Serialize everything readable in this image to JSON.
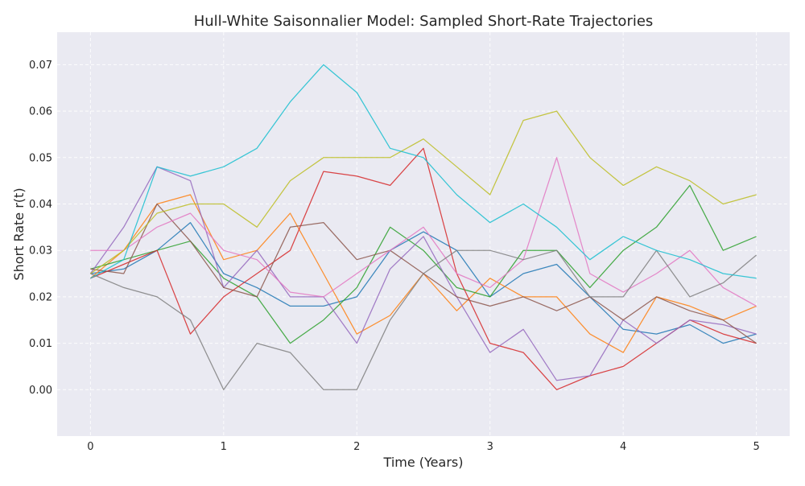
{
  "chart_data": {
    "type": "line",
    "title": "Hull-White Saisonnalier Model: Sampled Short-Rate Trajectories",
    "xlabel": "Time (Years)",
    "ylabel": "Short Rate r(t)",
    "xlim": [
      -0.25,
      5.25
    ],
    "ylim": [
      -0.01,
      0.077
    ],
    "xticks": [
      0,
      1,
      2,
      3,
      4,
      5
    ],
    "yticks": [
      0.0,
      0.01,
      0.02,
      0.03,
      0.04,
      0.05,
      0.06,
      0.07
    ],
    "xtick_labels": [
      "0",
      "1",
      "2",
      "3",
      "4",
      "5"
    ],
    "ytick_labels": [
      "0.00",
      "0.01",
      "0.02",
      "0.03",
      "0.04",
      "0.05",
      "0.06",
      "0.07"
    ],
    "grid": true,
    "legend": "none",
    "plot_background": "#eaeaf2",
    "series_colors": [
      "#1f77b4",
      "#ff7f0e",
      "#2ca02c",
      "#d62728",
      "#9467bd",
      "#8c564b",
      "#e377c2",
      "#7f7f7f",
      "#bcbd22",
      "#17becf"
    ],
    "series": [
      {
        "x": [
          0,
          0.25,
          0.5,
          0.75,
          1.0,
          1.25,
          1.5,
          1.75,
          2.0,
          2.25,
          2.5,
          2.75,
          3.0,
          3.25,
          3.5,
          3.75,
          4.0,
          4.25,
          4.5,
          4.75,
          5.0
        ],
        "values": [
          0.025,
          0.026,
          0.03,
          0.036,
          0.025,
          0.022,
          0.018,
          0.018,
          0.02,
          0.03,
          0.034,
          0.03,
          0.02,
          0.025,
          0.027,
          0.02,
          0.013,
          0.012,
          0.014,
          0.01,
          0.012
        ]
      },
      {
        "x": [
          0,
          0.25,
          0.5,
          0.75,
          1.0,
          1.25,
          1.5,
          1.75,
          2.0,
          2.25,
          2.5,
          2.75,
          3.0,
          3.25,
          3.5,
          3.75,
          4.0,
          4.25,
          4.5,
          4.75,
          5.0
        ],
        "values": [
          0.024,
          0.03,
          0.04,
          0.042,
          0.028,
          0.03,
          0.038,
          0.025,
          0.012,
          0.016,
          0.025,
          0.017,
          0.024,
          0.02,
          0.02,
          0.012,
          0.008,
          0.02,
          0.018,
          0.015,
          0.018
        ]
      },
      {
        "x": [
          0,
          0.25,
          0.5,
          0.75,
          1.0,
          1.25,
          1.5,
          1.75,
          2.0,
          2.25,
          2.5,
          2.75,
          3.0,
          3.25,
          3.5,
          3.75,
          4.0,
          4.25,
          4.5,
          4.75,
          5.0
        ],
        "values": [
          0.026,
          0.028,
          0.03,
          0.032,
          0.024,
          0.02,
          0.01,
          0.015,
          0.022,
          0.035,
          0.03,
          0.022,
          0.02,
          0.03,
          0.03,
          0.022,
          0.03,
          0.035,
          0.044,
          0.03,
          0.033
        ]
      },
      {
        "x": [
          0,
          0.25,
          0.5,
          0.75,
          1.0,
          1.25,
          1.5,
          1.75,
          2.0,
          2.25,
          2.5,
          2.75,
          3.0,
          3.25,
          3.5,
          3.75,
          4.0,
          4.25,
          4.5,
          4.75,
          5.0
        ],
        "values": [
          0.024,
          0.027,
          0.03,
          0.012,
          0.02,
          0.025,
          0.03,
          0.047,
          0.046,
          0.044,
          0.052,
          0.025,
          0.01,
          0.008,
          0.0,
          0.003,
          0.005,
          0.01,
          0.015,
          0.012,
          0.01
        ]
      },
      {
        "x": [
          0,
          0.25,
          0.5,
          0.75,
          1.0,
          1.25,
          1.5,
          1.75,
          2.0,
          2.25,
          2.5,
          2.75,
          3.0,
          3.25,
          3.5,
          3.75,
          4.0,
          4.25,
          4.5,
          4.75,
          5.0
        ],
        "values": [
          0.025,
          0.035,
          0.048,
          0.045,
          0.022,
          0.03,
          0.02,
          0.02,
          0.01,
          0.026,
          0.033,
          0.02,
          0.008,
          0.013,
          0.002,
          0.003,
          0.015,
          0.01,
          0.015,
          0.014,
          0.012
        ]
      },
      {
        "x": [
          0,
          0.25,
          0.5,
          0.75,
          1.0,
          1.25,
          1.5,
          1.75,
          2.0,
          2.25,
          2.5,
          2.75,
          3.0,
          3.25,
          3.5,
          3.75,
          4.0,
          4.25,
          4.5,
          4.75,
          5.0
        ],
        "values": [
          0.026,
          0.025,
          0.04,
          0.032,
          0.022,
          0.02,
          0.035,
          0.036,
          0.028,
          0.03,
          0.025,
          0.02,
          0.018,
          0.02,
          0.017,
          0.02,
          0.015,
          0.02,
          0.017,
          0.015,
          0.01
        ]
      },
      {
        "x": [
          0,
          0.25,
          0.5,
          0.75,
          1.0,
          1.25,
          1.5,
          1.75,
          2.0,
          2.25,
          2.5,
          2.75,
          3.0,
          3.25,
          3.5,
          3.75,
          4.0,
          4.25,
          4.5,
          4.75,
          5.0
        ],
        "values": [
          0.03,
          0.03,
          0.035,
          0.038,
          0.03,
          0.028,
          0.021,
          0.02,
          0.025,
          0.03,
          0.035,
          0.025,
          0.022,
          0.028,
          0.05,
          0.025,
          0.021,
          0.025,
          0.03,
          0.022,
          0.018
        ]
      },
      {
        "x": [
          0,
          0.25,
          0.5,
          0.75,
          1.0,
          1.25,
          1.5,
          1.75,
          2.0,
          2.25,
          2.5,
          2.75,
          3.0,
          3.25,
          3.5,
          3.75,
          4.0,
          4.25,
          4.5,
          4.75,
          5.0
        ],
        "values": [
          0.025,
          0.022,
          0.02,
          0.015,
          0.0,
          0.01,
          0.008,
          0.0,
          0.0,
          0.015,
          0.025,
          0.03,
          0.03,
          0.028,
          0.03,
          0.02,
          0.02,
          0.03,
          0.02,
          0.023,
          0.029
        ]
      },
      {
        "x": [
          0,
          0.25,
          0.5,
          0.75,
          1.0,
          1.25,
          1.5,
          1.75,
          2.0,
          2.25,
          2.5,
          2.75,
          3.0,
          3.25,
          3.5,
          3.75,
          4.0,
          4.25,
          4.5,
          4.75,
          5.0
        ],
        "values": [
          0.025,
          0.03,
          0.038,
          0.04,
          0.04,
          0.035,
          0.045,
          0.05,
          0.05,
          0.05,
          0.054,
          0.048,
          0.042,
          0.058,
          0.06,
          0.05,
          0.044,
          0.048,
          0.045,
          0.04,
          0.042
        ]
      },
      {
        "x": [
          0,
          0.25,
          0.5,
          0.75,
          1.0,
          1.25,
          1.5,
          1.75,
          2.0,
          2.25,
          2.5,
          2.75,
          3.0,
          3.25,
          3.5,
          3.75,
          4.0,
          4.25,
          4.5,
          4.75,
          5.0
        ],
        "values": [
          0.024,
          0.028,
          0.048,
          0.046,
          0.048,
          0.052,
          0.062,
          0.07,
          0.064,
          0.052,
          0.05,
          0.042,
          0.036,
          0.04,
          0.035,
          0.028,
          0.033,
          0.03,
          0.028,
          0.025,
          0.024
        ]
      }
    ]
  }
}
